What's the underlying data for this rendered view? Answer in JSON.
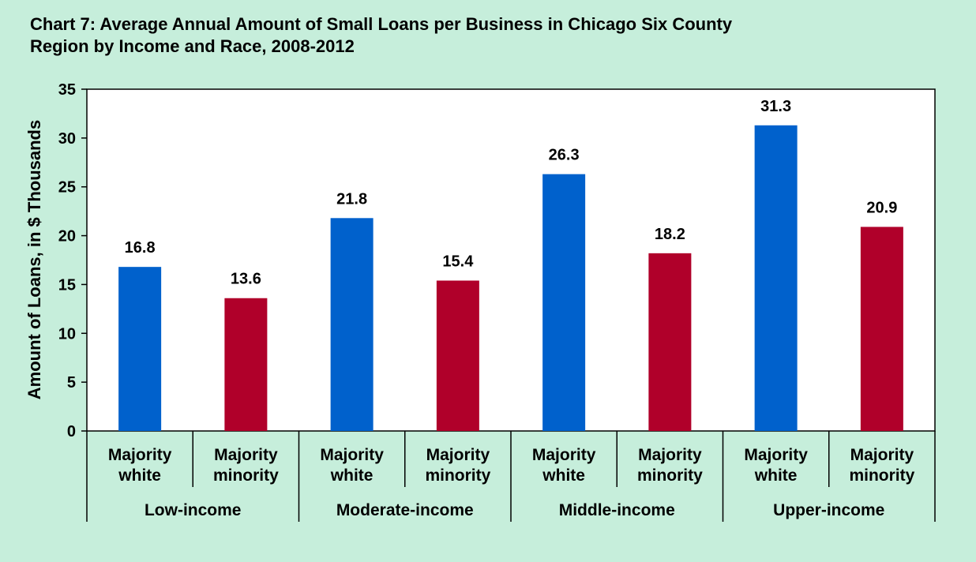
{
  "colors": {
    "background": "#c6eedb",
    "plot_background": "#ffffff",
    "series_white": "#0061cc",
    "series_minority": "#b0002a",
    "axis": "#000000"
  },
  "chart_data": {
    "type": "bar",
    "title_lines": [
      "Chart 7: Average Annual Amount of Small Loans per Business in Chicago Six County",
      "Region by Income and Race, 2008-2012"
    ],
    "ylabel": "Amount of Loans, in $ Thousands",
    "xlabel": "",
    "ylim": [
      0,
      35
    ],
    "yticks": [
      0,
      5,
      10,
      15,
      20,
      25,
      30,
      35
    ],
    "grid": false,
    "groups": [
      "Low-income",
      "Moderate-income",
      "Middle-income",
      "Upper-income"
    ],
    "categories": [
      {
        "line1": "Majority",
        "line2": "white",
        "group": 0,
        "series": "white"
      },
      {
        "line1": "Majority",
        "line2": "minority",
        "group": 0,
        "series": "minority"
      },
      {
        "line1": "Majority",
        "line2": "white",
        "group": 1,
        "series": "white"
      },
      {
        "line1": "Majority",
        "line2": "minority",
        "group": 1,
        "series": "minority"
      },
      {
        "line1": "Majority",
        "line2": "white",
        "group": 2,
        "series": "white"
      },
      {
        "line1": "Majority",
        "line2": "minority",
        "group": 2,
        "series": "minority"
      },
      {
        "line1": "Majority",
        "line2": "white",
        "group": 3,
        "series": "white"
      },
      {
        "line1": "Majority",
        "line2": "minority",
        "group": 3,
        "series": "minority"
      }
    ],
    "values": [
      16.8,
      13.6,
      21.8,
      15.4,
      26.3,
      18.2,
      31.3,
      20.9
    ],
    "value_labels": [
      "16.8",
      "13.6",
      "21.8",
      "15.4",
      "26.3",
      "18.2",
      "31.3",
      "20.9"
    ]
  }
}
